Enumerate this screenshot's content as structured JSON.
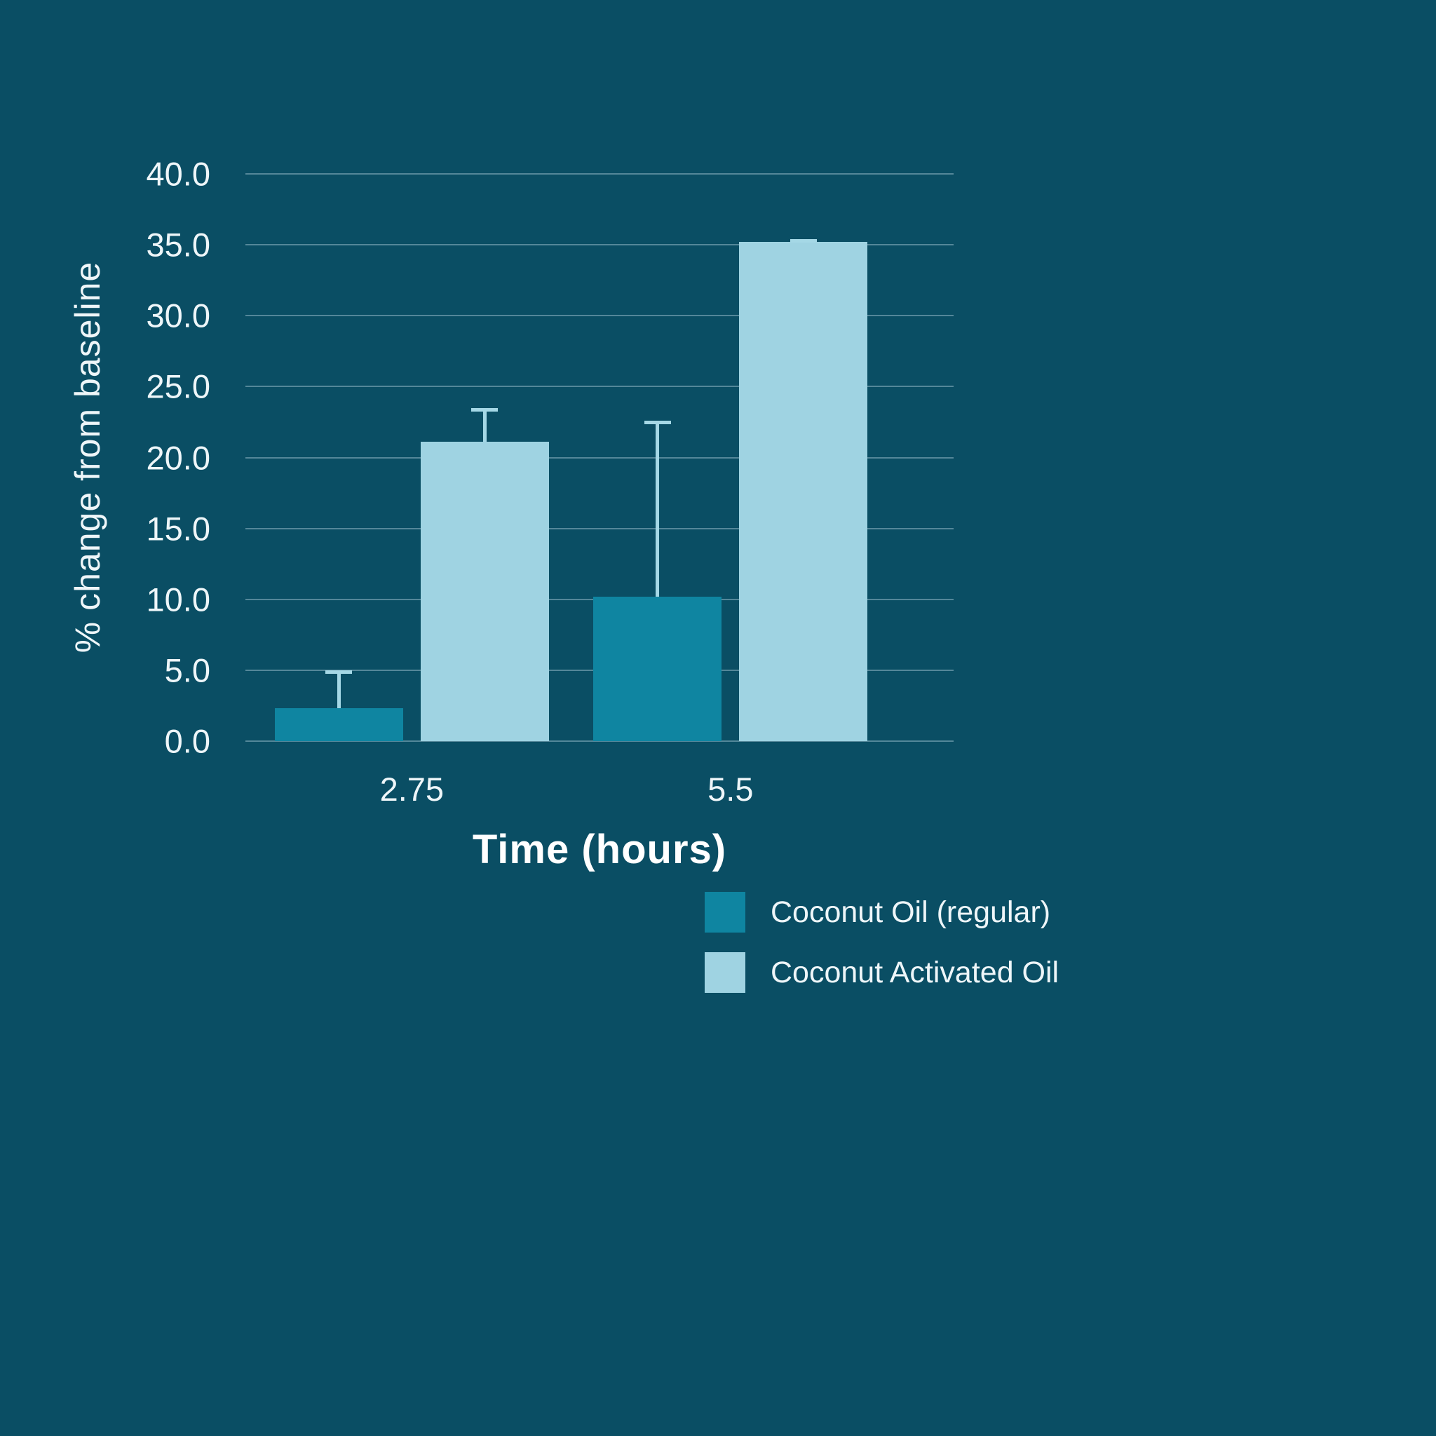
{
  "chart_data": {
    "type": "bar",
    "title": "",
    "xlabel": "Time (hours)",
    "ylabel": "% change from baseline",
    "categories": [
      "2.75",
      "5.5"
    ],
    "series": [
      {
        "name": "Coconut Oil (regular)",
        "color": "#0f85a1",
        "values": [
          2.3,
          10.2
        ],
        "error_up": [
          2.7,
          12.4
        ]
      },
      {
        "name": "Coconut Activated Oil",
        "color": "#9fd3e2",
        "values": [
          21.1,
          35.2
        ],
        "error_up": [
          2.4,
          0.2
        ]
      }
    ],
    "ylim": [
      0,
      40
    ],
    "ytick_step": 5,
    "ytick_labels": [
      "0.0",
      "5.0",
      "10.0",
      "15.0",
      "20.0",
      "25.0",
      "30.0",
      "35.0",
      "40.0"
    ],
    "grid": true,
    "legend_position": "bottom-right"
  },
  "colors": {
    "background": "#0a4e64",
    "text": "#eef6f9",
    "grid": "#cde6ee",
    "error_bar": "#a5d8e6"
  }
}
